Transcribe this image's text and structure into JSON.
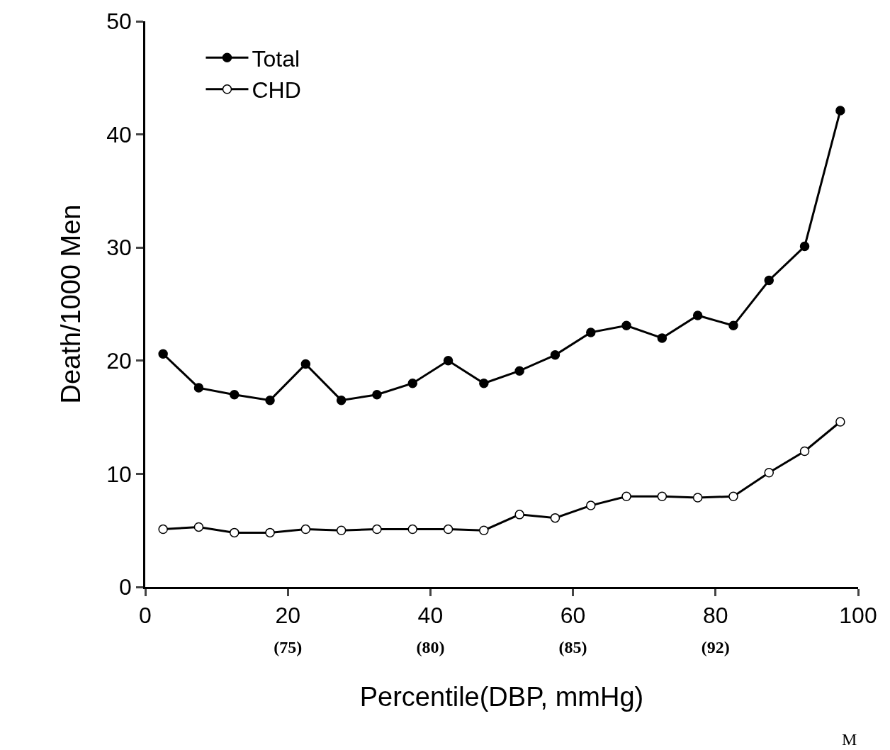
{
  "chart_data": {
    "type": "line",
    "xlabel": "Percentile(DBP, mmHg)",
    "ylabel": "Death/1000 Men",
    "x": [
      2.5,
      7.5,
      12.5,
      17.5,
      22.5,
      27.5,
      32.5,
      37.5,
      42.5,
      47.5,
      52.5,
      57.5,
      62.5,
      67.5,
      72.5,
      77.5,
      82.5,
      87.5,
      92.5,
      97.5
    ],
    "series": [
      {
        "name": "Total",
        "color": "#000000",
        "marker": "circle",
        "values": [
          20.6,
          17.6,
          17.0,
          16.5,
          19.7,
          16.5,
          17.0,
          18.0,
          20.0,
          18.0,
          19.1,
          20.5,
          22.5,
          23.1,
          22.0,
          24.0,
          23.1,
          27.1,
          30.1,
          42.1
        ]
      },
      {
        "name": "CHD",
        "color": "#000000",
        "marker": "circle-open",
        "values": [
          5.1,
          5.3,
          4.8,
          4.8,
          5.1,
          5.0,
          5.1,
          5.1,
          5.1,
          5.0,
          6.4,
          6.1,
          7.2,
          8.0,
          8.0,
          7.9,
          8.0,
          10.1,
          12.0,
          14.6
        ]
      }
    ],
    "xlim": [
      0,
      100
    ],
    "xticks": [
      0,
      {
        "value": 20,
        "label": "20\n(75)"
      },
      {
        "value": 40,
        "label": "40\n(80)"
      },
      {
        "value": 60,
        "label": "60\n(85)"
      },
      {
        "value": 80,
        "label": "80\n(92)"
      },
      100
    ],
    "ylim": [
      0,
      50
    ],
    "yticks": [
      0,
      10,
      20,
      30,
      40,
      50
    ],
    "legend": "top left",
    "line_style": "solid",
    "annotations": [
      "M"
    ]
  }
}
